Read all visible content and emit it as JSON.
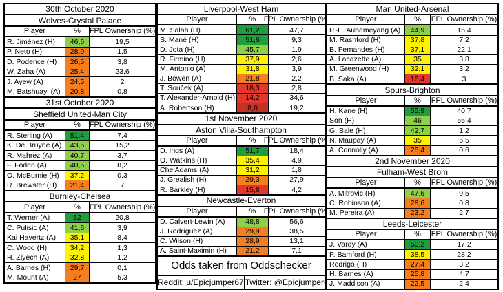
{
  "labels": {
    "player": "Player",
    "percent": "%",
    "ownership": "FPL Ownership (%)"
  },
  "colors": {
    "pct_ge_50": "#1E9E3C",
    "pct_40_49": "#8FD04A",
    "pct_30_39": "#FFF200",
    "pct_20_29": "#F57E20",
    "pct_10_19": "#E5362B",
    "pct_lt_10": "#C23227",
    "border": "#000000",
    "background": "#FFFFFF"
  },
  "columns": [
    {
      "blocks": [
        {
          "type": "date",
          "text": "30th October 2020"
        },
        {
          "type": "match",
          "text": "Wolves-Crystal Palace"
        },
        {
          "type": "table",
          "players": [
            {
              "name": "R. Jiménez (H)",
              "pct": "46,6",
              "own": "19,5"
            },
            {
              "name": "P. Neto (H)",
              "pct": "28,9",
              "own": "1,5"
            },
            {
              "name": "D. Podence (H)",
              "pct": "26,5",
              "own": "3,8"
            },
            {
              "name": "W. Zaha (A)",
              "pct": "25,4",
              "own": "23,6"
            },
            {
              "name": "J. Ayew (A)",
              "pct": "24,5",
              "own": "2"
            },
            {
              "name": "M. Batshuayi (A)",
              "pct": "20,8",
              "own": "0,8"
            }
          ]
        },
        {
          "type": "date",
          "text": "31st October 2020"
        },
        {
          "type": "match",
          "text": "Sheffield United-Man City"
        },
        {
          "type": "table",
          "players": [
            {
              "name": "R. Sterling (A)",
              "pct": "51,4",
              "own": "7,4"
            },
            {
              "name": "K. De Bruyne (A)",
              "pct": "43,5",
              "own": "15,2"
            },
            {
              "name": "R. Mahrez (A)",
              "pct": "40,7",
              "own": "3,7"
            },
            {
              "name": "F. Foden (A)",
              "pct": "40,5",
              "own": "8,2"
            },
            {
              "name": "O. McBurnie (H)",
              "pct": "37,2",
              "own": "0,3"
            },
            {
              "name": "R. Brewster (H)",
              "pct": "21,4",
              "own": "7"
            }
          ]
        },
        {
          "type": "match",
          "text": "Burnley-Chelsea"
        },
        {
          "type": "table",
          "players": [
            {
              "name": "T. Werner (A)",
              "pct": "52",
              "own": "20,8"
            },
            {
              "name": "C. Pulisic (A)",
              "pct": "41,6",
              "own": "3,9"
            },
            {
              "name": "Kai Havertz (A)",
              "pct": "35,1",
              "own": "8,4"
            },
            {
              "name": "C. Wood (H)",
              "pct": "34,2",
              "own": "1,3"
            },
            {
              "name": "H. Ziyech (A)",
              "pct": "32,8",
              "own": "1,2"
            },
            {
              "name": "A. Barnes (H)",
              "pct": "29,7",
              "own": "0,1"
            },
            {
              "name": "M. Mount (A)",
              "pct": "27",
              "own": "5,3"
            }
          ]
        }
      ]
    },
    {
      "blocks": [
        {
          "type": "match",
          "text": "Liverpool-West Ham"
        },
        {
          "type": "table",
          "players": [
            {
              "name": "M. Salah (H)",
              "pct": "61,2",
              "own": "47,7"
            },
            {
              "name": "S. Mané (H)",
              "pct": "51,6",
              "own": "9,3"
            },
            {
              "name": "D. Jota (H)",
              "pct": "45,7",
              "own": "1,9"
            },
            {
              "name": "R. Firmino (H)",
              "pct": "37,9",
              "own": "2,6"
            },
            {
              "name": "M. Antonio (A)",
              "pct": "31,8",
              "own": "3,9"
            },
            {
              "name": "J. Bowen (A)",
              "pct": "21,8",
              "own": "2,2"
            },
            {
              "name": "T. Souček (A)",
              "pct": "18,3",
              "own": "2,8"
            },
            {
              "name": "T. Alexander-Arnold (H)",
              "pct": "14,2",
              "own": "34,6"
            },
            {
              "name": "A. Robertson (H)",
              "pct": "8,6",
              "own": "19,2"
            }
          ]
        },
        {
          "type": "date",
          "text": "1st November 2020"
        },
        {
          "type": "match",
          "text": "Aston Villa-Southampton"
        },
        {
          "type": "table",
          "players": [
            {
              "name": "D. Ings (A)",
              "pct": "51,7",
              "own": "18,4"
            },
            {
              "name": "O. Watkins (H)",
              "pct": "35,4",
              "own": "4,9"
            },
            {
              "name": "Che Adams (A)",
              "pct": "31,2",
              "own": "1,8"
            },
            {
              "name": "J. Grealish (H)",
              "pct": "29,3",
              "own": "27,9"
            },
            {
              "name": "R. Barkley (H)",
              "pct": "15,8",
              "own": "4,2"
            }
          ]
        },
        {
          "type": "match",
          "text": "Newcastle-Everton"
        },
        {
          "type": "table",
          "players": [
            {
              "name": "D. Calvert-Lewin (A)",
              "pct": "48,8",
              "own": "56,6"
            },
            {
              "name": "J. Rodríguez (A)",
              "pct": "29,9",
              "own": "38,5"
            },
            {
              "name": "C. Wilson (H)",
              "pct": "28,9",
              "own": "13,1"
            },
            {
              "name": "A. Saint-Maximin (H)",
              "pct": "21,2",
              "own": "7,1"
            }
          ]
        },
        {
          "type": "note",
          "text": "Odds taken from Oddschecker"
        },
        {
          "type": "credits",
          "cells": [
            "Reddit: u/Epicjumper67",
            "Twitter: @Epicjumper67"
          ]
        }
      ]
    },
    {
      "blocks": [
        {
          "type": "match",
          "text": "Man United-Arsenal"
        },
        {
          "type": "table",
          "players": [
            {
              "name": "P.-E. Aubameyang (A)",
              "pct": "44,9",
              "own": "15,4"
            },
            {
              "name": "M. Rashford (H)",
              "pct": "37,8",
              "own": "7,2"
            },
            {
              "name": "B. Fernandes (H)",
              "pct": "37,1",
              "own": "22,1"
            },
            {
              "name": "A. Lacazette (A)",
              "pct": "35",
              "own": "3,8"
            },
            {
              "name": "M. Greenwood (H)",
              "pct": "32,1",
              "own": "3,2"
            },
            {
              "name": "B. Saka (A)",
              "pct": "16,4",
              "own": "3"
            }
          ]
        },
        {
          "type": "match",
          "text": "Spurs-Brighton"
        },
        {
          "type": "table",
          "players": [
            {
              "name": "H. Kane (H)",
              "pct": "55,9",
              "own": "40,7"
            },
            {
              "name": "Son (H)",
              "pct": "46",
              "own": "55,4"
            },
            {
              "name": "G. Bale (H)",
              "pct": "42,7",
              "own": "1,2"
            },
            {
              "name": "N. Maupay (A)",
              "pct": "35",
              "own": "6,5"
            },
            {
              "name": "A. Connolly (A)",
              "pct": "25,4",
              "own": "0,6"
            }
          ]
        },
        {
          "type": "date",
          "text": "2nd November 2020"
        },
        {
          "type": "match",
          "text": "Fulham-West Brom"
        },
        {
          "type": "table",
          "players": [
            {
              "name": "A. Mitrović (H)",
              "pct": "47,6",
              "own": "9,5"
            },
            {
              "name": "C. Robinson (A)",
              "pct": "28,6",
              "own": "0,8"
            },
            {
              "name": "M. Pereira (A)",
              "pct": "23,2",
              "own": "2,7"
            }
          ]
        },
        {
          "type": "match",
          "text": "Leeds-Leicester"
        },
        {
          "type": "table",
          "players": [
            {
              "name": "J. Vardy (A)",
              "pct": "50,2",
              "own": "17,2"
            },
            {
              "name": "P. Bamford (H)",
              "pct": "38,5",
              "own": "28,2"
            },
            {
              "name": "Rodrigo (H)",
              "pct": "27,4",
              "own": "3,2"
            },
            {
              "name": "H. Barnes (A)",
              "pct": "25,8",
              "own": "4,7"
            },
            {
              "name": "J. Maddison (A)",
              "pct": "22,5",
              "own": "2,4"
            }
          ]
        }
      ]
    }
  ]
}
